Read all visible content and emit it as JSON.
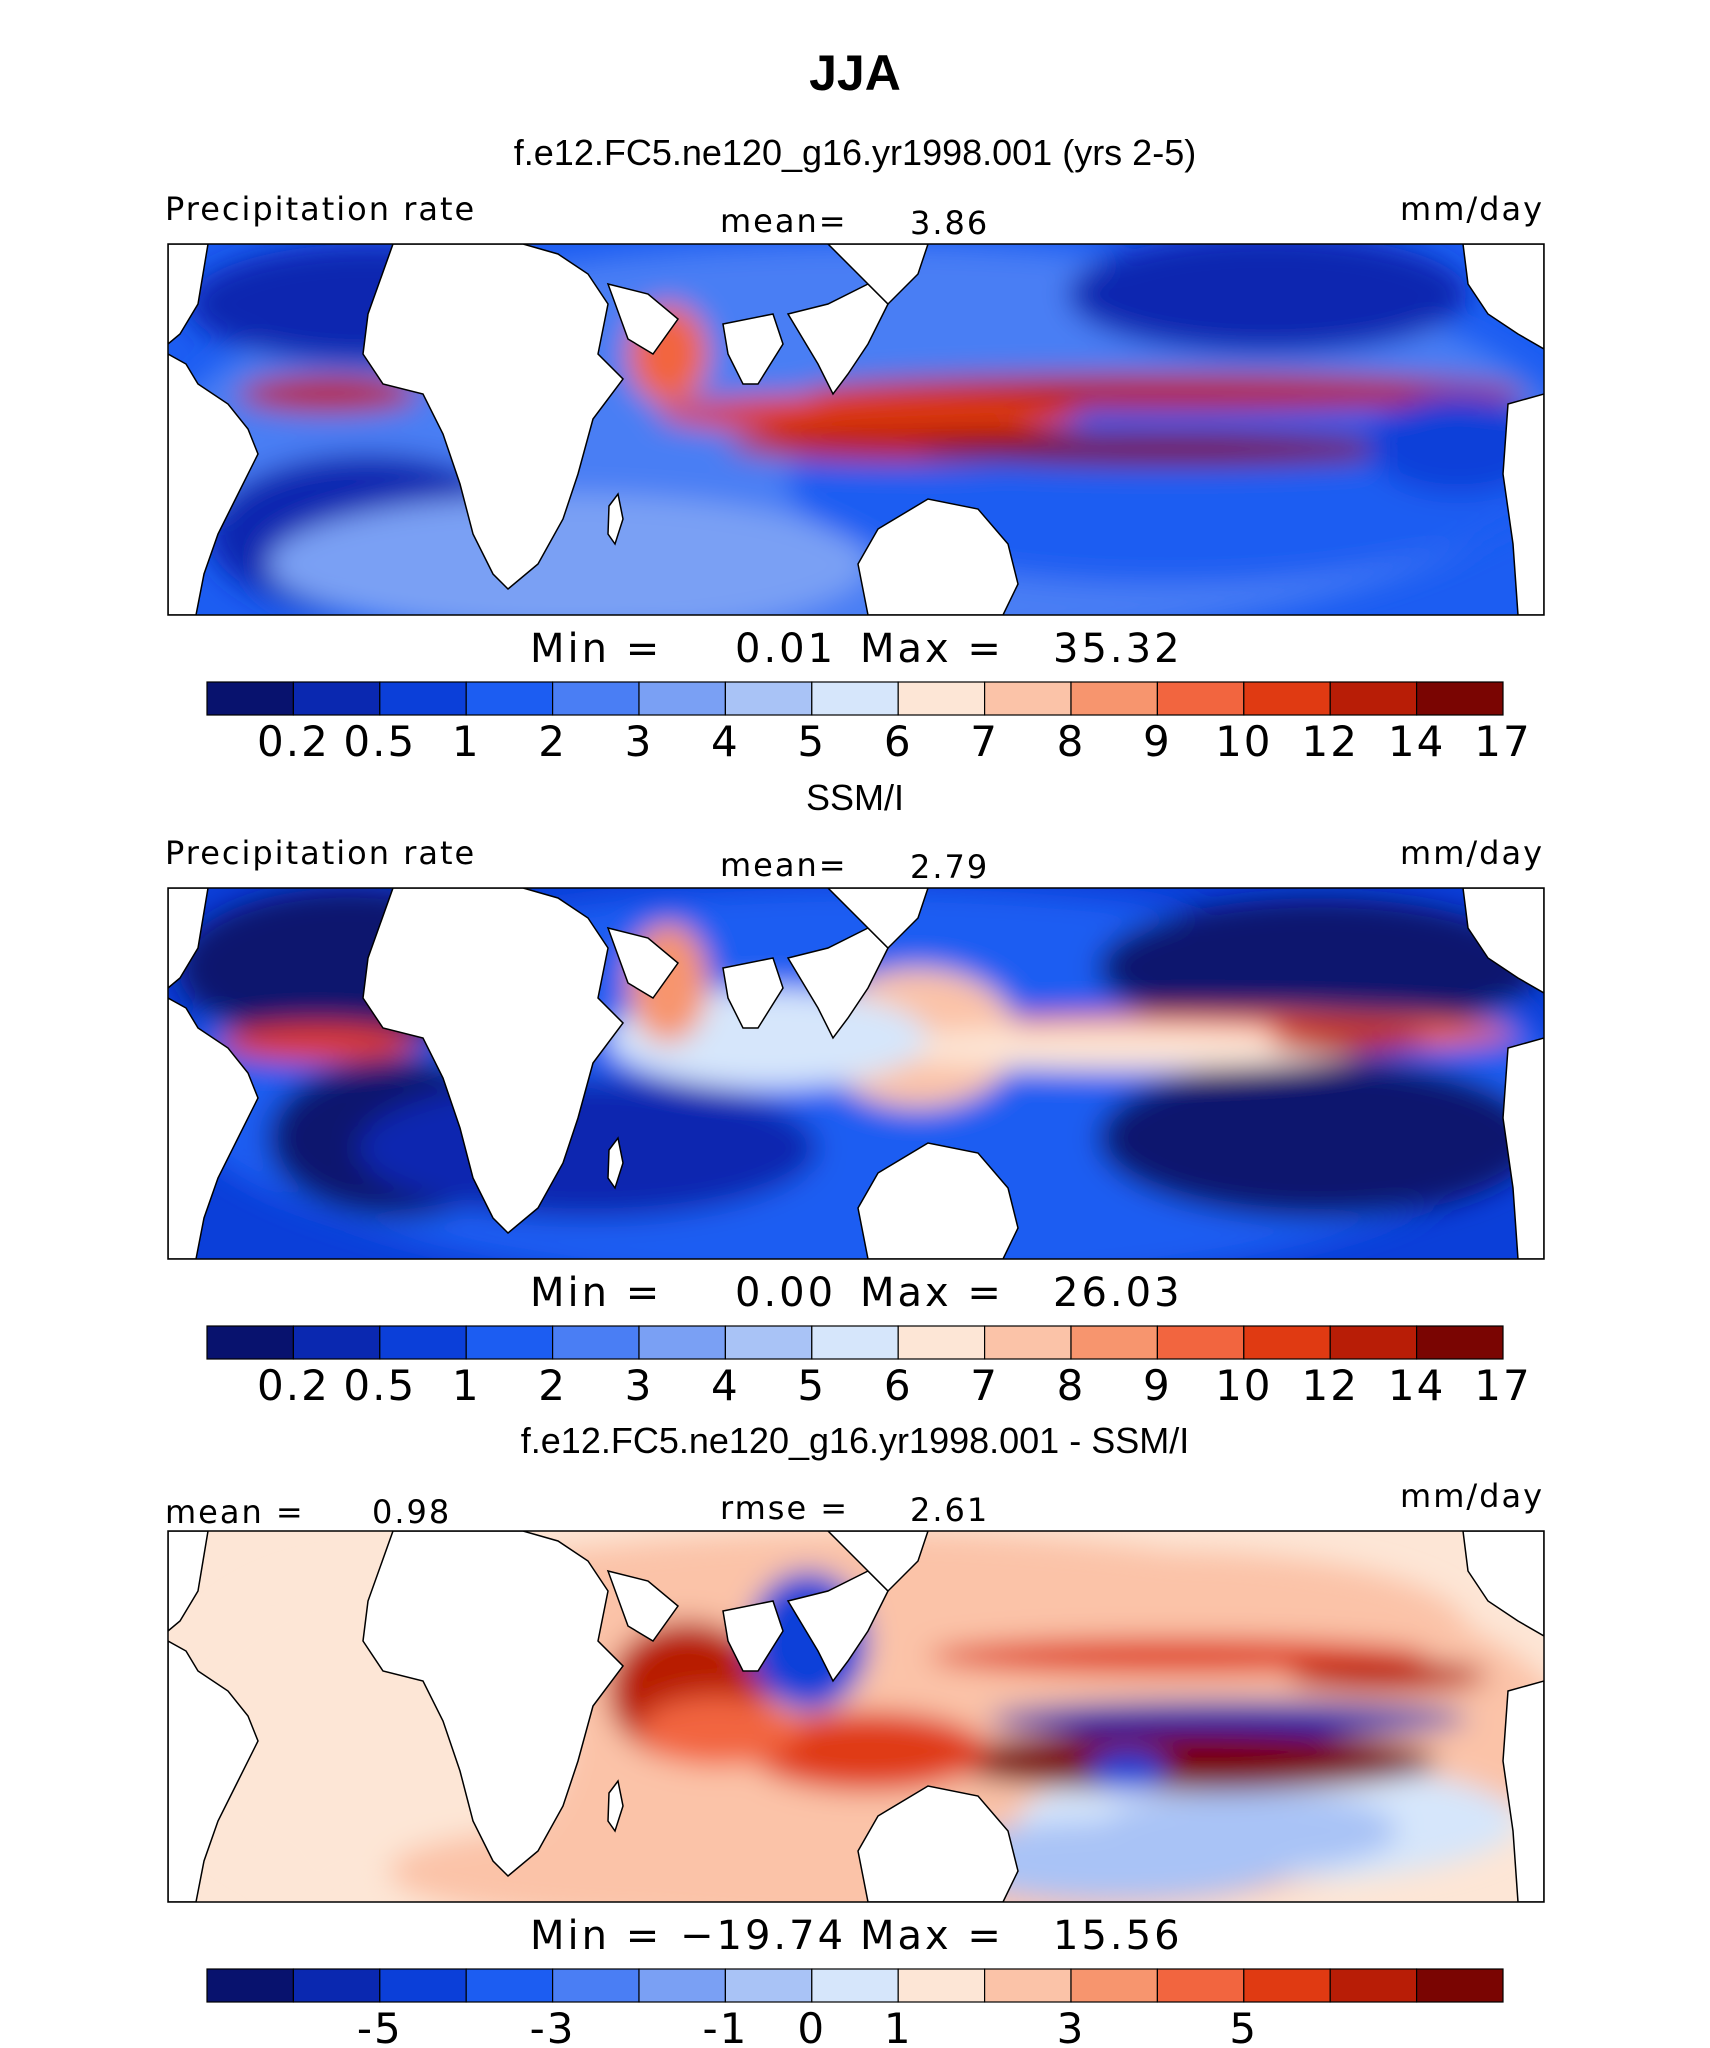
{
  "title": "JJA",
  "precip_levels": [
    "0.2",
    "0.5",
    "1",
    "2",
    "3",
    "4",
    "5",
    "6",
    "7",
    "8",
    "9",
    "10",
    "12",
    "14",
    "17"
  ],
  "precip_colors": [
    "#08126e",
    "#0a28b0",
    "#0b3fd9",
    "#1c5df2",
    "#4a7ef4",
    "#7aa0f4",
    "#a9c3f6",
    "#d6e6fb",
    "#fde6d6",
    "#fbc3a8",
    "#f7956e",
    "#f2653f",
    "#e03a12",
    "#b81d06",
    "#7a0502"
  ],
  "diff_levels": [
    "-5",
    "-3",
    "-1",
    "0",
    "1",
    "3",
    "5"
  ],
  "diff_colors": [
    "#08126e",
    "#0a28b0",
    "#0b3fd9",
    "#1c5df2",
    "#4a7ef4",
    "#7aa0f4",
    "#a9c3f6",
    "#d6e6fb",
    "#fde6d6",
    "#fbc3a8",
    "#f7956e",
    "#f2653f",
    "#e03a12",
    "#b81d06",
    "#7a0502"
  ],
  "chart_data": [
    {
      "type": "heatmap",
      "title": "f.e12.FC5.ne120_g16.yr1998.001 (yrs 2-5)",
      "left_label": "Precipitation rate",
      "units": "mm/day",
      "mean_label": "mean=",
      "mean": "3.86",
      "min_label": "Min =",
      "min": "0.01",
      "max_label": "Max =",
      "max": "35.32"
    },
    {
      "type": "heatmap",
      "title": "SSM/I",
      "left_label": "Precipitation rate",
      "units": "mm/day",
      "mean_label": "mean=",
      "mean": "2.79",
      "min_label": "Min =",
      "min": "0.00",
      "max_label": "Max =",
      "max": "26.03"
    },
    {
      "type": "heatmap",
      "title": "f.e12.FC5.ne120_g16.yr1998.001 - SSM/I",
      "left_label": "mean =",
      "left_value": "0.98",
      "units": "mm/day",
      "mean_label": "rmse =",
      "mean": "2.61",
      "min_label": "Min =",
      "min": "−19.74",
      "max_label": "Max =",
      "max": "15.56"
    }
  ]
}
